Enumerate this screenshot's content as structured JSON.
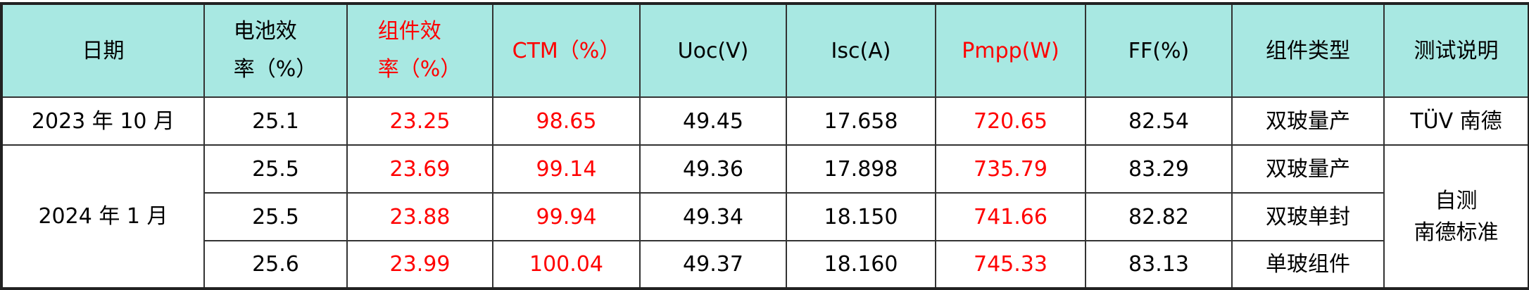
{
  "header": [
    {
      "label": "日期",
      "red": false
    },
    {
      "label": "电池效率（%）",
      "line1": "电池效",
      "line2": "率（%）",
      "red": false
    },
    {
      "label": "组件效率（%）",
      "line1": "组件效",
      "line2": "率（%）",
      "red": true
    },
    {
      "label": "CTM（%）",
      "red": true
    },
    {
      "label": "Uoc(V)",
      "red": false
    },
    {
      "label": "Isc(A)",
      "red": false
    },
    {
      "label": "Pmpp(W)",
      "red": true
    },
    {
      "label": "FF(%)",
      "red": false
    },
    {
      "label": "组件类型",
      "red": false
    },
    {
      "label": "测试说明",
      "red": false
    }
  ],
  "dates": [
    "2023 年 10 月",
    "2024 年 1 月"
  ],
  "notes": {
    "tuv": "TÜV 南德",
    "self_line1": "自测",
    "self_line2": "南德标准"
  },
  "rows": [
    {
      "cell": "25.1",
      "module": "23.25",
      "ctm": "98.65",
      "uoc": "49.45",
      "isc": "17.658",
      "pmpp": "720.65",
      "ff": "82.54",
      "type": "双玻量产"
    },
    {
      "cell": "25.5",
      "module": "23.69",
      "ctm": "99.14",
      "uoc": "49.36",
      "isc": "17.898",
      "pmpp": "735.79",
      "ff": "83.29",
      "type": "双玻量产"
    },
    {
      "cell": "25.5",
      "module": "23.88",
      "ctm": "99.94",
      "uoc": "49.34",
      "isc": "18.150",
      "pmpp": "741.66",
      "ff": "82.82",
      "type": "双玻单封"
    },
    {
      "cell": "25.6",
      "module": "23.99",
      "ctm": "100.04",
      "uoc": "49.37",
      "isc": "18.160",
      "pmpp": "745.33",
      "ff": "83.13",
      "type": "单玻组件"
    }
  ],
  "colors": {
    "header_bg": "#a8e8e2",
    "highlight": "#ff0000"
  }
}
